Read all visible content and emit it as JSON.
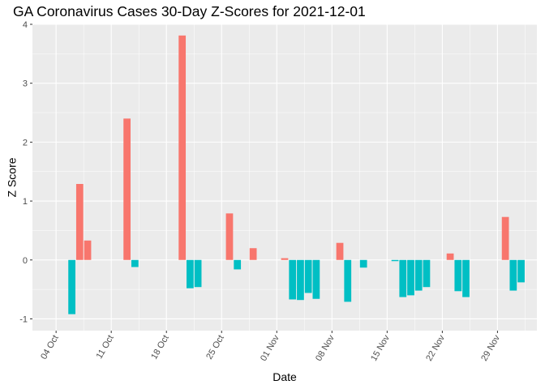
{
  "chart_data": {
    "type": "bar",
    "title": "GA Coronavirus Cases 30-Day Z-Scores for 2021-12-01",
    "xlabel": "Date",
    "ylabel": "Z Score",
    "ylim": [
      -1.2,
      4.0
    ],
    "xlim": [
      "2021-10-01",
      "2021-12-04"
    ],
    "grid": true,
    "legend": "none",
    "positive_color": "#F8766D",
    "negative_color": "#00BFC4",
    "panel_background": "#EBEBEB",
    "y_ticks": [
      -1,
      0,
      1,
      2,
      3,
      4
    ],
    "x_ticks": [
      {
        "date": "2021-10-04",
        "label": "04 Oct"
      },
      {
        "date": "2021-10-11",
        "label": "11 Oct"
      },
      {
        "date": "2021-10-18",
        "label": "18 Oct"
      },
      {
        "date": "2021-10-25",
        "label": "25 Oct"
      },
      {
        "date": "2021-11-01",
        "label": "01 Nov"
      },
      {
        "date": "2021-11-08",
        "label": "08 Nov"
      },
      {
        "date": "2021-11-15",
        "label": "15 Nov"
      },
      {
        "date": "2021-11-22",
        "label": "22 Nov"
      },
      {
        "date": "2021-11-29",
        "label": "29 Nov"
      }
    ],
    "points": [
      {
        "date": "2021-10-06",
        "value": -0.92
      },
      {
        "date": "2021-10-07",
        "value": 1.29
      },
      {
        "date": "2021-10-08",
        "value": 0.33
      },
      {
        "date": "2021-10-13",
        "value": 2.4
      },
      {
        "date": "2021-10-14",
        "value": -0.12
      },
      {
        "date": "2021-10-20",
        "value": 3.81
      },
      {
        "date": "2021-10-21",
        "value": -0.48
      },
      {
        "date": "2021-10-22",
        "value": -0.46
      },
      {
        "date": "2021-10-26",
        "value": 0.79
      },
      {
        "date": "2021-10-27",
        "value": -0.16
      },
      {
        "date": "2021-10-29",
        "value": 0.2
      },
      {
        "date": "2021-11-02",
        "value": 0.03
      },
      {
        "date": "2021-11-03",
        "value": -0.67
      },
      {
        "date": "2021-11-04",
        "value": -0.68
      },
      {
        "date": "2021-11-05",
        "value": -0.56
      },
      {
        "date": "2021-11-06",
        "value": -0.66
      },
      {
        "date": "2021-11-09",
        "value": 0.29
      },
      {
        "date": "2021-11-10",
        "value": -0.71
      },
      {
        "date": "2021-11-12",
        "value": -0.13
      },
      {
        "date": "2021-11-16",
        "value": -0.02
      },
      {
        "date": "2021-11-17",
        "value": -0.63
      },
      {
        "date": "2021-11-18",
        "value": -0.6
      },
      {
        "date": "2021-11-19",
        "value": -0.52
      },
      {
        "date": "2021-11-20",
        "value": -0.46
      },
      {
        "date": "2021-11-23",
        "value": 0.11
      },
      {
        "date": "2021-11-24",
        "value": -0.53
      },
      {
        "date": "2021-11-25",
        "value": -0.63
      },
      {
        "date": "2021-11-30",
        "value": 0.73
      },
      {
        "date": "2021-12-01",
        "value": -0.52
      },
      {
        "date": "2021-12-02",
        "value": -0.38
      }
    ]
  }
}
